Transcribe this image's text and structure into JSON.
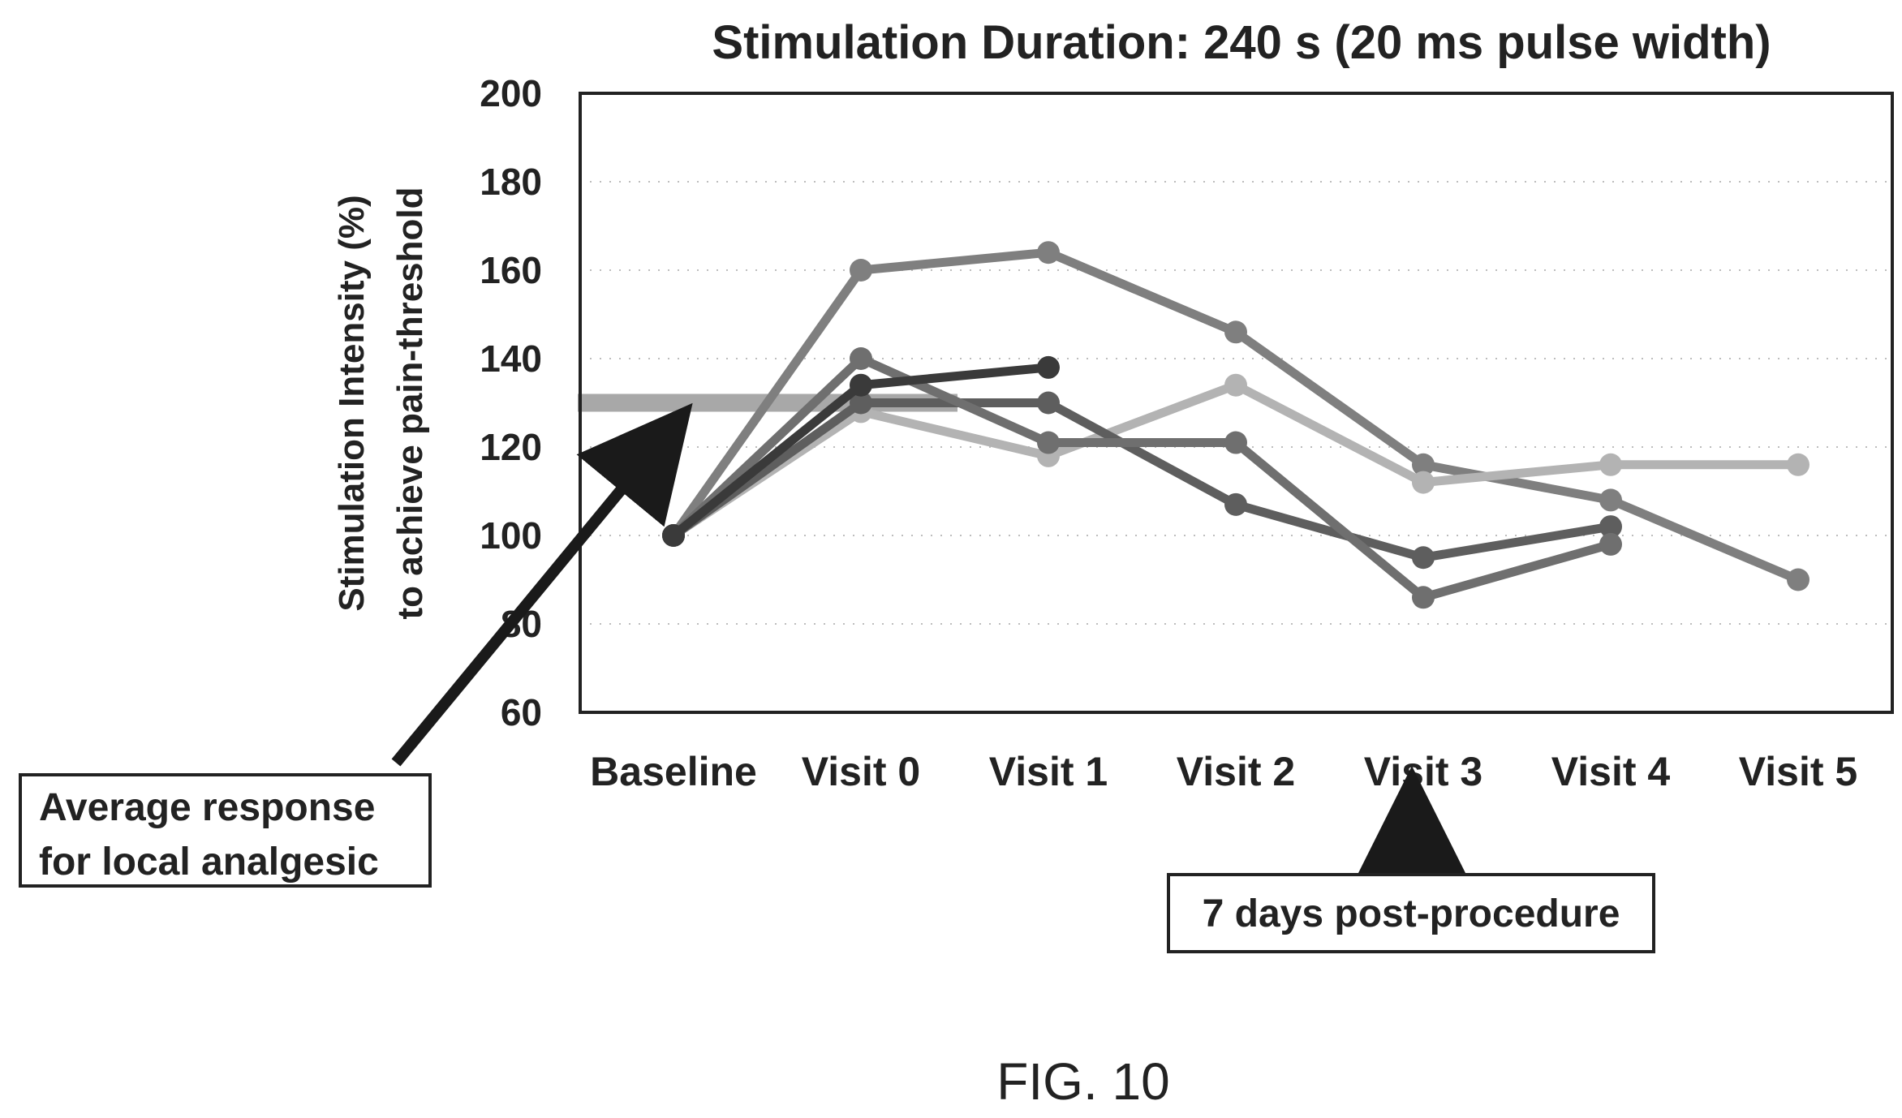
{
  "chart_data": {
    "type": "line",
    "title": "Stimulation Duration: 240 s (20 ms pulse width)",
    "ylabel_line1": "Stimulation Intensity (%)",
    "ylabel_line2": "to achieve pain-threshold",
    "categories": [
      "Baseline",
      "Visit 0",
      "Visit 1",
      "Visit 2",
      "Visit 3",
      "Visit 4",
      "Visit 5"
    ],
    "ylim": [
      60,
      200
    ],
    "yticks": [
      60,
      80,
      100,
      120,
      140,
      160,
      180,
      200
    ],
    "grid": true,
    "series": [
      {
        "values": [
          100,
          160,
          164,
          146,
          116,
          108,
          90
        ],
        "color": "#7f7f7f"
      },
      {
        "values": [
          100,
          128,
          118,
          134,
          112,
          116,
          116
        ],
        "color": "#b3b3b3"
      },
      {
        "values": [
          100,
          130,
          130,
          107,
          95,
          102,
          null
        ],
        "color": "#5e5e5e"
      },
      {
        "values": [
          100,
          140,
          121,
          121,
          86,
          98,
          null
        ],
        "color": "#6f6f6f"
      },
      {
        "values": [
          100,
          134,
          138,
          null,
          null,
          null,
          null
        ],
        "color": "#3a3a3a"
      }
    ],
    "reference_line": {
      "value": 130,
      "color": "#9a9a9a"
    },
    "annotations": [
      {
        "line1": "Average response",
        "line2": "for local analgesic"
      },
      {
        "text": "7 days post-procedure"
      }
    ]
  },
  "figure_label": "FIG. 10"
}
